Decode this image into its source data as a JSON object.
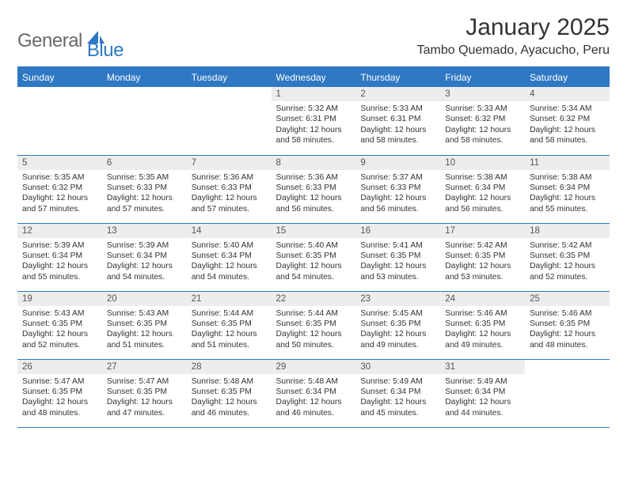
{
  "brand": {
    "text1": "General",
    "text2": "Blue",
    "color_general": "#6a6a6a",
    "color_blue": "#2f78c3"
  },
  "title": "January 2025",
  "location": "Tambo Quemado, Ayacucho, Peru",
  "colors": {
    "header_bg": "#2f78c3",
    "header_text": "#ffffff",
    "daynum_bg": "#ededed",
    "border": "#2f78c3",
    "text": "#333333",
    "page_bg": "#ffffff"
  },
  "fonts": {
    "title_size_pt": 22,
    "location_size_pt": 12,
    "dayhead_size_pt": 9,
    "cell_size_pt": 8
  },
  "day_names": [
    "Sunday",
    "Monday",
    "Tuesday",
    "Wednesday",
    "Thursday",
    "Friday",
    "Saturday"
  ],
  "weeks": [
    [
      {
        "num": "",
        "lines": []
      },
      {
        "num": "",
        "lines": []
      },
      {
        "num": "",
        "lines": []
      },
      {
        "num": "1",
        "lines": [
          "Sunrise: 5:32 AM",
          "Sunset: 6:31 PM",
          "Daylight: 12 hours",
          "and 58 minutes."
        ]
      },
      {
        "num": "2",
        "lines": [
          "Sunrise: 5:33 AM",
          "Sunset: 6:31 PM",
          "Daylight: 12 hours",
          "and 58 minutes."
        ]
      },
      {
        "num": "3",
        "lines": [
          "Sunrise: 5:33 AM",
          "Sunset: 6:32 PM",
          "Daylight: 12 hours",
          "and 58 minutes."
        ]
      },
      {
        "num": "4",
        "lines": [
          "Sunrise: 5:34 AM",
          "Sunset: 6:32 PM",
          "Daylight: 12 hours",
          "and 58 minutes."
        ]
      }
    ],
    [
      {
        "num": "5",
        "lines": [
          "Sunrise: 5:35 AM",
          "Sunset: 6:32 PM",
          "Daylight: 12 hours",
          "and 57 minutes."
        ]
      },
      {
        "num": "6",
        "lines": [
          "Sunrise: 5:35 AM",
          "Sunset: 6:33 PM",
          "Daylight: 12 hours",
          "and 57 minutes."
        ]
      },
      {
        "num": "7",
        "lines": [
          "Sunrise: 5:36 AM",
          "Sunset: 6:33 PM",
          "Daylight: 12 hours",
          "and 57 minutes."
        ]
      },
      {
        "num": "8",
        "lines": [
          "Sunrise: 5:36 AM",
          "Sunset: 6:33 PM",
          "Daylight: 12 hours",
          "and 56 minutes."
        ]
      },
      {
        "num": "9",
        "lines": [
          "Sunrise: 5:37 AM",
          "Sunset: 6:33 PM",
          "Daylight: 12 hours",
          "and 56 minutes."
        ]
      },
      {
        "num": "10",
        "lines": [
          "Sunrise: 5:38 AM",
          "Sunset: 6:34 PM",
          "Daylight: 12 hours",
          "and 56 minutes."
        ]
      },
      {
        "num": "11",
        "lines": [
          "Sunrise: 5:38 AM",
          "Sunset: 6:34 PM",
          "Daylight: 12 hours",
          "and 55 minutes."
        ]
      }
    ],
    [
      {
        "num": "12",
        "lines": [
          "Sunrise: 5:39 AM",
          "Sunset: 6:34 PM",
          "Daylight: 12 hours",
          "and 55 minutes."
        ]
      },
      {
        "num": "13",
        "lines": [
          "Sunrise: 5:39 AM",
          "Sunset: 6:34 PM",
          "Daylight: 12 hours",
          "and 54 minutes."
        ]
      },
      {
        "num": "14",
        "lines": [
          "Sunrise: 5:40 AM",
          "Sunset: 6:34 PM",
          "Daylight: 12 hours",
          "and 54 minutes."
        ]
      },
      {
        "num": "15",
        "lines": [
          "Sunrise: 5:40 AM",
          "Sunset: 6:35 PM",
          "Daylight: 12 hours",
          "and 54 minutes."
        ]
      },
      {
        "num": "16",
        "lines": [
          "Sunrise: 5:41 AM",
          "Sunset: 6:35 PM",
          "Daylight: 12 hours",
          "and 53 minutes."
        ]
      },
      {
        "num": "17",
        "lines": [
          "Sunrise: 5:42 AM",
          "Sunset: 6:35 PM",
          "Daylight: 12 hours",
          "and 53 minutes."
        ]
      },
      {
        "num": "18",
        "lines": [
          "Sunrise: 5:42 AM",
          "Sunset: 6:35 PM",
          "Daylight: 12 hours",
          "and 52 minutes."
        ]
      }
    ],
    [
      {
        "num": "19",
        "lines": [
          "Sunrise: 5:43 AM",
          "Sunset: 6:35 PM",
          "Daylight: 12 hours",
          "and 52 minutes."
        ]
      },
      {
        "num": "20",
        "lines": [
          "Sunrise: 5:43 AM",
          "Sunset: 6:35 PM",
          "Daylight: 12 hours",
          "and 51 minutes."
        ]
      },
      {
        "num": "21",
        "lines": [
          "Sunrise: 5:44 AM",
          "Sunset: 6:35 PM",
          "Daylight: 12 hours",
          "and 51 minutes."
        ]
      },
      {
        "num": "22",
        "lines": [
          "Sunrise: 5:44 AM",
          "Sunset: 6:35 PM",
          "Daylight: 12 hours",
          "and 50 minutes."
        ]
      },
      {
        "num": "23",
        "lines": [
          "Sunrise: 5:45 AM",
          "Sunset: 6:35 PM",
          "Daylight: 12 hours",
          "and 49 minutes."
        ]
      },
      {
        "num": "24",
        "lines": [
          "Sunrise: 5:46 AM",
          "Sunset: 6:35 PM",
          "Daylight: 12 hours",
          "and 49 minutes."
        ]
      },
      {
        "num": "25",
        "lines": [
          "Sunrise: 5:46 AM",
          "Sunset: 6:35 PM",
          "Daylight: 12 hours",
          "and 48 minutes."
        ]
      }
    ],
    [
      {
        "num": "26",
        "lines": [
          "Sunrise: 5:47 AM",
          "Sunset: 6:35 PM",
          "Daylight: 12 hours",
          "and 48 minutes."
        ]
      },
      {
        "num": "27",
        "lines": [
          "Sunrise: 5:47 AM",
          "Sunset: 6:35 PM",
          "Daylight: 12 hours",
          "and 47 minutes."
        ]
      },
      {
        "num": "28",
        "lines": [
          "Sunrise: 5:48 AM",
          "Sunset: 6:35 PM",
          "Daylight: 12 hours",
          "and 46 minutes."
        ]
      },
      {
        "num": "29",
        "lines": [
          "Sunrise: 5:48 AM",
          "Sunset: 6:34 PM",
          "Daylight: 12 hours",
          "and 46 minutes."
        ]
      },
      {
        "num": "30",
        "lines": [
          "Sunrise: 5:49 AM",
          "Sunset: 6:34 PM",
          "Daylight: 12 hours",
          "and 45 minutes."
        ]
      },
      {
        "num": "31",
        "lines": [
          "Sunrise: 5:49 AM",
          "Sunset: 6:34 PM",
          "Daylight: 12 hours",
          "and 44 minutes."
        ]
      },
      {
        "num": "",
        "lines": []
      }
    ]
  ]
}
